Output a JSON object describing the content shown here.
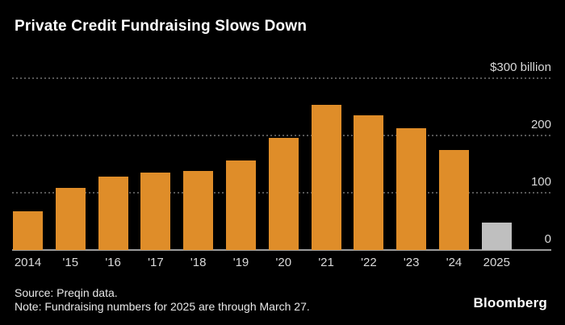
{
  "title": "Private Credit Fundraising Slows Down",
  "footer": {
    "source": "Source: Preqin data.",
    "note": "Note: Fundraising numbers for 2025 are through March 27.",
    "brand": "Bloomberg"
  },
  "colors": {
    "background": "#000000",
    "bar": "#DF8D29",
    "bar_highlight": "#BFBFBF",
    "gridline": "#555555",
    "axis_line": "#9C9C9C",
    "tick_text": "#D9D9D9",
    "title_text": "#FFFFFF"
  },
  "chart_data": {
    "type": "bar",
    "title": "Private Credit Fundraising Slows Down",
    "unit": "$ billion",
    "categories": [
      "2014",
      "'15",
      "'16",
      "'17",
      "'18",
      "'19",
      "'20",
      "'21",
      "'22",
      "'23",
      "'24",
      "2025"
    ],
    "values": [
      68,
      109,
      128,
      135,
      138,
      157,
      196,
      254,
      235,
      213,
      175,
      48
    ],
    "highlight_index": 11,
    "highlight_note": "2025 bar shown in gray (partial year)",
    "y_ticks": [
      {
        "value": 300,
        "label": "$300 billion"
      },
      {
        "value": 200,
        "label": "200"
      },
      {
        "value": 100,
        "label": "100"
      },
      {
        "value": 0,
        "label": "0"
      }
    ],
    "ylim": [
      0,
      300
    ],
    "grid": "dotted-horizontal",
    "legend": "none",
    "axis_side": "right"
  }
}
